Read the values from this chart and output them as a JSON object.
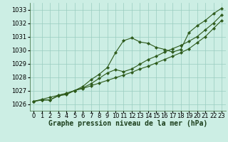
{
  "xlabel": "Graphe pression niveau de la mer (hPa)",
  "hours": [
    0,
    1,
    2,
    3,
    4,
    5,
    6,
    7,
    8,
    9,
    10,
    11,
    12,
    13,
    14,
    15,
    16,
    17,
    18,
    19,
    20,
    21,
    22,
    23
  ],
  "line_straight": [
    1026.2,
    1026.35,
    1026.5,
    1026.65,
    1026.8,
    1027.0,
    1027.15,
    1027.35,
    1027.55,
    1027.75,
    1027.95,
    1028.15,
    1028.35,
    1028.6,
    1028.8,
    1029.05,
    1029.3,
    1029.55,
    1029.8,
    1030.1,
    1030.55,
    1031.0,
    1031.6,
    1032.2
  ],
  "line_actual": [
    1026.2,
    1026.3,
    1026.3,
    1026.6,
    1026.7,
    1027.0,
    1027.3,
    1027.8,
    1028.2,
    1028.7,
    1029.8,
    1030.7,
    1030.9,
    1030.6,
    1030.5,
    1030.2,
    1030.05,
    1029.85,
    1030.05,
    1031.3,
    1031.8,
    1032.2,
    1032.7,
    1033.1
  ],
  "line_lower": [
    1026.2,
    1026.3,
    1026.3,
    1026.65,
    1026.75,
    1027.0,
    1027.2,
    1027.5,
    1027.9,
    1028.3,
    1028.55,
    1028.4,
    1028.6,
    1028.95,
    1029.3,
    1029.55,
    1029.85,
    1030.1,
    1030.35,
    1030.65,
    1031.0,
    1031.5,
    1032.0,
    1032.6
  ],
  "line_color": "#2d5a1b",
  "bg_color": "#cceee4",
  "grid_color": "#99ccc0",
  "ylim": [
    1025.5,
    1033.5
  ],
  "yticks": [
    1026,
    1027,
    1028,
    1029,
    1030,
    1031,
    1032,
    1033
  ],
  "xlabel_fontsize": 7,
  "tick_fontsize": 6
}
